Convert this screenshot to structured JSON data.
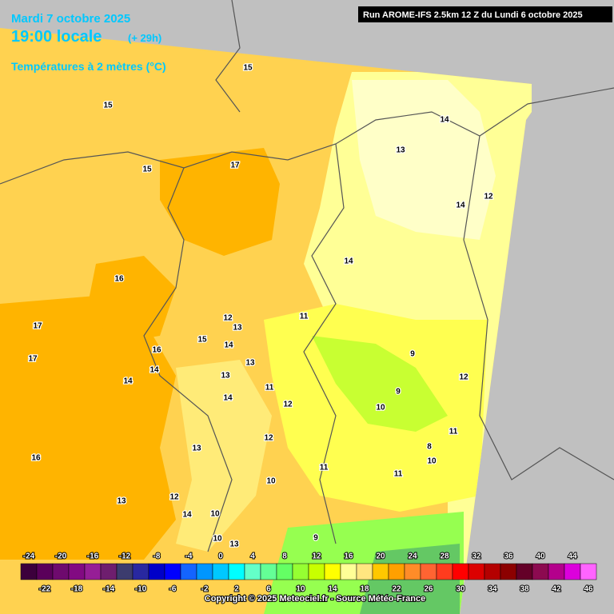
{
  "header": {
    "date": "Mardi 7 octobre 2025",
    "time": "19:00 locale",
    "lead": "(+ 29h)",
    "variable": "Températures à 2 mètres (°C)",
    "run": "Run AROME-IFS 2.5km 12 Z du Lundi 6 octobre 2025"
  },
  "legend": {
    "labels": [
      -24,
      -22,
      -20,
      -18,
      -16,
      -14,
      -12,
      -10,
      -8,
      -6,
      -4,
      -2,
      0,
      2,
      4,
      6,
      8,
      10,
      12,
      14,
      16,
      18,
      20,
      22,
      24,
      26,
      28,
      30,
      32,
      34,
      36,
      38,
      40,
      42,
      44,
      46
    ],
    "colors": [
      "#3c003c",
      "#5a005a",
      "#6e0a6e",
      "#820a82",
      "#961e96",
      "#6e1e6e",
      "#3c3c6e",
      "#2828a0",
      "#0000c8",
      "#0000ff",
      "#1464ff",
      "#0096ff",
      "#00c8ff",
      "#00ffff",
      "#64ffc8",
      "#64ff96",
      "#64ff64",
      "#96ff32",
      "#c8ff00",
      "#ffff00",
      "#ffff96",
      "#ffe680",
      "#ffc800",
      "#ffa000",
      "#ff8c28",
      "#ff6432",
      "#ff3c1e",
      "#ff0000",
      "#dc0000",
      "#b40000",
      "#8c0000",
      "#640028",
      "#8c0a50",
      "#b4008c",
      "#dc00dc",
      "#ff64ff"
    ]
  },
  "contour_labels": [
    "15",
    "15",
    "15",
    "17",
    "13",
    "14",
    "12",
    "14",
    "14",
    "16",
    "17",
    "17",
    "16",
    "12",
    "13",
    "15",
    "14",
    "14",
    "14",
    "11",
    "9",
    "13",
    "13",
    "12",
    "11",
    "9",
    "14",
    "12",
    "10",
    "11",
    "12",
    "8",
    "10",
    "16",
    "13",
    "11",
    "11",
    "10",
    "13",
    "12",
    "14",
    "10",
    "10",
    "9",
    "13"
  ],
  "footer": {
    "copyright": "Copyright © 2025 Meteociel.fr - Source Météo-France"
  }
}
